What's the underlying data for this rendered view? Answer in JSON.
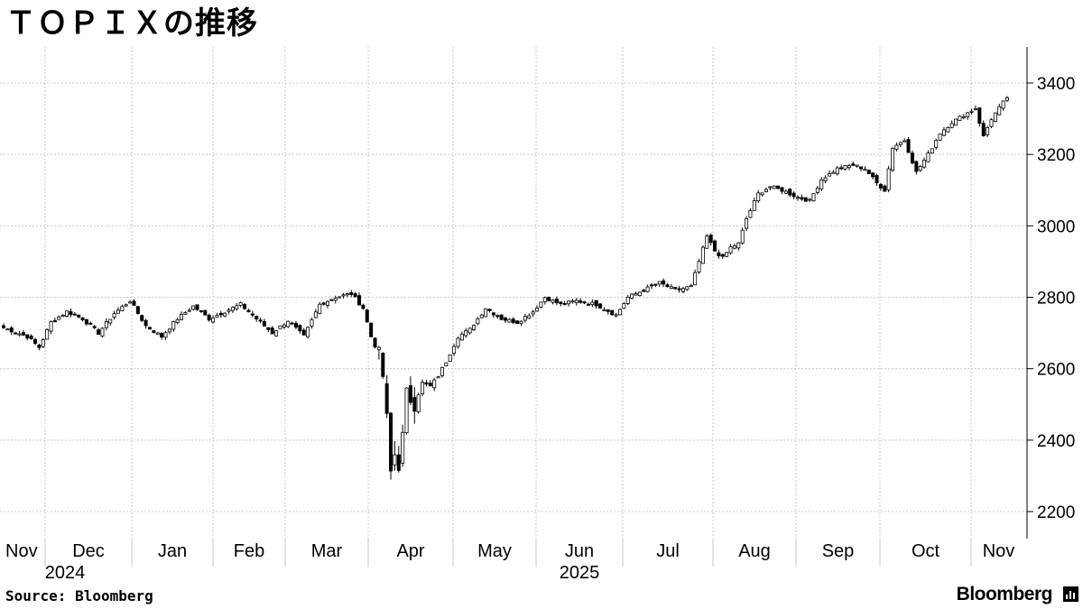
{
  "title": "ＴＯＰＩＸの推移",
  "source_label": "Source: Bloomberg",
  "brand_label": "Bloomberg",
  "chart_data": {
    "type": "candlestick",
    "y_ticks": [
      2200,
      2400,
      2600,
      2800,
      3000,
      3200,
      3400
    ],
    "ylim": [
      2150,
      3500
    ],
    "months": [
      {
        "label": "Nov",
        "year": "2024"
      },
      {
        "label": "Dec"
      },
      {
        "label": "Jan"
      },
      {
        "label": "Feb"
      },
      {
        "label": "Mar"
      },
      {
        "label": "Apr"
      },
      {
        "label": "May"
      },
      {
        "label": "Jun",
        "year": "2025"
      },
      {
        "label": "Jul"
      },
      {
        "label": "Aug"
      },
      {
        "label": "Sep"
      },
      {
        "label": "Oct"
      },
      {
        "label": "Nov"
      }
    ],
    "grid": true,
    "close_anchors": [
      [
        0,
        2715
      ],
      [
        6,
        2690
      ],
      [
        9,
        2660
      ],
      [
        12,
        2730
      ],
      [
        16,
        2760
      ],
      [
        20,
        2740
      ],
      [
        24,
        2700
      ],
      [
        28,
        2755
      ],
      [
        32,
        2790
      ],
      [
        36,
        2720
      ],
      [
        40,
        2690
      ],
      [
        44,
        2740
      ],
      [
        48,
        2775
      ],
      [
        52,
        2740
      ],
      [
        56,
        2760
      ],
      [
        60,
        2780
      ],
      [
        64,
        2740
      ],
      [
        68,
        2700
      ],
      [
        72,
        2735
      ],
      [
        76,
        2690
      ],
      [
        80,
        2780
      ],
      [
        84,
        2800
      ],
      [
        88,
        2810
      ],
      [
        91,
        2770
      ],
      [
        93,
        2690
      ],
      [
        95,
        2640
      ],
      [
        96,
        2580
      ],
      [
        97,
        2460
      ],
      [
        98,
        2310
      ],
      [
        99,
        2360
      ],
      [
        100,
        2330
      ],
      [
        101,
        2410
      ],
      [
        102,
        2530
      ],
      [
        104,
        2500
      ],
      [
        106,
        2560
      ],
      [
        108,
        2550
      ],
      [
        110,
        2580
      ],
      [
        112,
        2620
      ],
      [
        115,
        2690
      ],
      [
        118,
        2710
      ],
      [
        122,
        2770
      ],
      [
        126,
        2740
      ],
      [
        130,
        2730
      ],
      [
        134,
        2760
      ],
      [
        137,
        2800
      ],
      [
        141,
        2780
      ],
      [
        145,
        2790
      ],
      [
        150,
        2780
      ],
      [
        155,
        2750
      ],
      [
        158,
        2800
      ],
      [
        162,
        2820
      ],
      [
        166,
        2840
      ],
      [
        170,
        2820
      ],
      [
        174,
        2830
      ],
      [
        176,
        2900
      ],
      [
        178,
        2970
      ],
      [
        180,
        2930
      ],
      [
        182,
        2910
      ],
      [
        184,
        2940
      ],
      [
        186,
        2950
      ],
      [
        188,
        3020
      ],
      [
        191,
        3090
      ],
      [
        194,
        3110
      ],
      [
        197,
        3100
      ],
      [
        201,
        3080
      ],
      [
        204,
        3070
      ],
      [
        207,
        3130
      ],
      [
        211,
        3160
      ],
      [
        215,
        3170
      ],
      [
        218,
        3160
      ],
      [
        221,
        3120
      ],
      [
        223,
        3100
      ],
      [
        225,
        3220
      ],
      [
        228,
        3240
      ],
      [
        231,
        3150
      ],
      [
        234,
        3200
      ],
      [
        237,
        3260
      ],
      [
        240,
        3290
      ],
      [
        243,
        3310
      ],
      [
        246,
        3330
      ],
      [
        248,
        3250
      ],
      [
        250,
        3300
      ],
      [
        252,
        3330
      ],
      [
        254,
        3360
      ]
    ],
    "total_sessions": 255
  }
}
